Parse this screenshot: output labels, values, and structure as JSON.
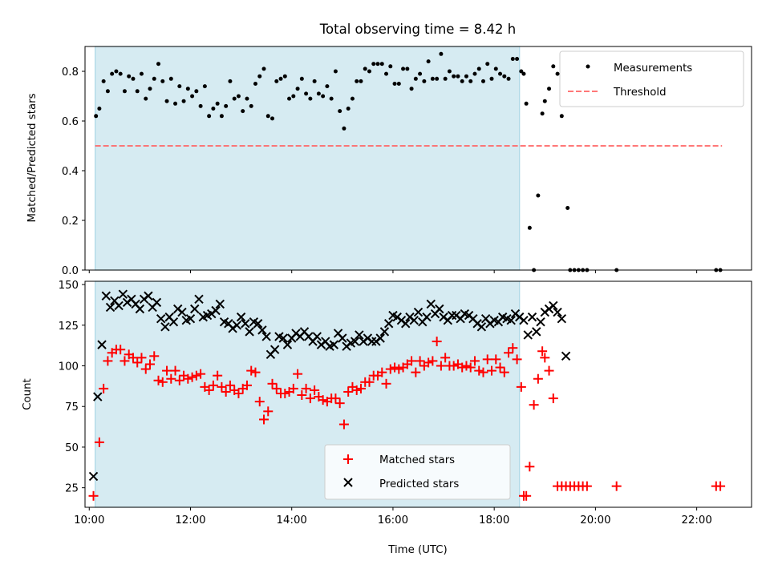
{
  "chart_data": [
    {
      "type": "scatter",
      "title": "Total observing time = 8.42 h",
      "xlabel": "",
      "ylabel": "Matched/Predicted stars",
      "xlim": [
        "09:55",
        "23:05"
      ],
      "ylim": [
        0,
        0.9
      ],
      "yticks": [
        "0.0",
        "0.2",
        "0.4",
        "0.6",
        "0.8"
      ],
      "grid": false,
      "legend_position": "top-right",
      "shaded_interval": [
        "10:07",
        "18:30"
      ],
      "colors": {
        "shade": "#add8e6",
        "measurements": "#000000",
        "threshold": "#ff6666"
      },
      "series": [
        {
          "name": "Measurements",
          "x": [
            "10:08",
            "10:12",
            "10:17",
            "10:22",
            "10:27",
            "10:32",
            "10:37",
            "10:42",
            "10:47",
            "10:52",
            "10:57",
            "11:02",
            "11:07",
            "11:12",
            "11:17",
            "11:22",
            "11:27",
            "11:32",
            "11:37",
            "11:42",
            "11:47",
            "11:52",
            "11:57",
            "12:02",
            "12:07",
            "12:12",
            "12:17",
            "12:22",
            "12:27",
            "12:32",
            "12:37",
            "12:42",
            "12:47",
            "12:52",
            "12:57",
            "13:02",
            "13:07",
            "13:12",
            "13:17",
            "13:22",
            "13:27",
            "13:32",
            "13:37",
            "13:42",
            "13:47",
            "13:52",
            "13:57",
            "14:02",
            "14:07",
            "14:12",
            "14:17",
            "14:22",
            "14:27",
            "14:32",
            "14:37",
            "14:42",
            "14:47",
            "14:52",
            "14:57",
            "15:02",
            "15:07",
            "15:12",
            "15:17",
            "15:22",
            "15:27",
            "15:32",
            "15:37",
            "15:42",
            "15:47",
            "15:52",
            "15:57",
            "16:02",
            "16:07",
            "16:12",
            "16:17",
            "16:22",
            "16:27",
            "16:32",
            "16:37",
            "16:42",
            "16:47",
            "16:52",
            "16:57",
            "17:02",
            "17:07",
            "17:12",
            "17:17",
            "17:22",
            "17:27",
            "17:32",
            "17:37",
            "17:42",
            "17:47",
            "17:52",
            "17:57",
            "18:02",
            "18:07",
            "18:12",
            "18:17",
            "18:22",
            "18:27",
            "18:32",
            "18:35",
            "18:38",
            "18:42",
            "18:47",
            "18:52",
            "18:57",
            "19:00",
            "19:05",
            "19:10",
            "19:15",
            "19:20",
            "19:27",
            "19:30",
            "19:35",
            "19:40",
            "19:45",
            "19:50",
            "20:25",
            "22:23",
            "22:28"
          ],
          "y": [
            0.62,
            0.65,
            0.76,
            0.72,
            0.79,
            0.8,
            0.79,
            0.72,
            0.78,
            0.77,
            0.72,
            0.79,
            0.69,
            0.73,
            0.77,
            0.83,
            0.76,
            0.68,
            0.77,
            0.67,
            0.74,
            0.68,
            0.73,
            0.7,
            0.72,
            0.66,
            0.74,
            0.62,
            0.65,
            0.67,
            0.62,
            0.66,
            0.76,
            0.69,
            0.7,
            0.64,
            0.69,
            0.66,
            0.75,
            0.78,
            0.81,
            0.62,
            0.61,
            0.76,
            0.77,
            0.78,
            0.69,
            0.7,
            0.73,
            0.77,
            0.71,
            0.69,
            0.76,
            0.71,
            0.7,
            0.74,
            0.69,
            0.8,
            0.64,
            0.57,
            0.65,
            0.69,
            0.76,
            0.76,
            0.81,
            0.8,
            0.83,
            0.83,
            0.83,
            0.79,
            0.82,
            0.75,
            0.75,
            0.81,
            0.81,
            0.73,
            0.77,
            0.79,
            0.76,
            0.84,
            0.77,
            0.77,
            0.87,
            0.77,
            0.8,
            0.78,
            0.78,
            0.76,
            0.78,
            0.76,
            0.79,
            0.81,
            0.76,
            0.83,
            0.77,
            0.81,
            0.79,
            0.78,
            0.77,
            0.85,
            0.85,
            0.8,
            0.79,
            0.67,
            0.17,
            0.0,
            0.3,
            0.63,
            0.68,
            0.73,
            0.82,
            0.79,
            0.62,
            0.25,
            0.0,
            0.0,
            0.0,
            0.0,
            0.0,
            0.0,
            0.0,
            0.0
          ]
        },
        {
          "name": "Threshold",
          "x": [
            "10:07",
            "22:30"
          ],
          "y": [
            0.5,
            0.5
          ]
        }
      ]
    },
    {
      "type": "scatter",
      "title": "",
      "xlabel": "Time (UTC)",
      "ylabel": "Count",
      "xlim": [
        "09:55",
        "23:05"
      ],
      "ylim": [
        13,
        152
      ],
      "xticks": [
        "10:00",
        "12:00",
        "14:00",
        "16:00",
        "18:00",
        "20:00",
        "22:00"
      ],
      "yticks": [
        "25",
        "50",
        "75",
        "100",
        "125",
        "150"
      ],
      "grid": false,
      "legend_position": "bottom-center",
      "shaded_interval": [
        "10:07",
        "18:30"
      ],
      "colors": {
        "shade": "#add8e6",
        "matched": "#ff0000",
        "predicted": "#000000"
      },
      "series": [
        {
          "name": "Matched stars",
          "x": [
            "10:05",
            "10:12",
            "10:17",
            "10:22",
            "10:27",
            "10:32",
            "10:37",
            "10:42",
            "10:47",
            "10:52",
            "10:57",
            "11:02",
            "11:07",
            "11:12",
            "11:17",
            "11:22",
            "11:27",
            "11:32",
            "11:37",
            "11:42",
            "11:47",
            "11:52",
            "11:57",
            "12:02",
            "12:07",
            "12:12",
            "12:17",
            "12:22",
            "12:27",
            "12:32",
            "12:37",
            "12:42",
            "12:47",
            "12:52",
            "12:57",
            "13:02",
            "13:07",
            "13:12",
            "13:17",
            "13:22",
            "13:27",
            "13:32",
            "13:37",
            "13:42",
            "13:47",
            "13:52",
            "13:57",
            "14:02",
            "14:07",
            "14:12",
            "14:17",
            "14:22",
            "14:27",
            "14:32",
            "14:37",
            "14:42",
            "14:47",
            "14:52",
            "14:57",
            "15:02",
            "15:07",
            "15:12",
            "15:17",
            "15:22",
            "15:27",
            "15:32",
            "15:37",
            "15:42",
            "15:47",
            "15:52",
            "15:57",
            "16:02",
            "16:07",
            "16:12",
            "16:17",
            "16:22",
            "16:27",
            "16:32",
            "16:37",
            "16:42",
            "16:47",
            "16:52",
            "16:57",
            "17:02",
            "17:07",
            "17:12",
            "17:17",
            "17:22",
            "17:27",
            "17:32",
            "17:37",
            "17:42",
            "17:47",
            "17:52",
            "17:57",
            "18:02",
            "18:07",
            "18:12",
            "18:17",
            "18:22",
            "18:27",
            "18:32",
            "18:35",
            "18:38",
            "18:42",
            "18:47",
            "18:52",
            "18:57",
            "19:00",
            "19:05",
            "19:10",
            "19:15",
            "19:20",
            "19:25",
            "19:30",
            "19:35",
            "19:40",
            "19:45",
            "19:50",
            "20:25",
            "22:23",
            "22:28"
          ],
          "y": [
            20,
            53,
            86,
            103,
            108,
            110,
            110,
            103,
            107,
            105,
            102,
            105,
            98,
            101,
            106,
            91,
            90,
            97,
            92,
            97,
            91,
            94,
            92,
            93,
            94,
            95,
            87,
            85,
            88,
            94,
            87,
            84,
            88,
            85,
            83,
            86,
            88,
            97,
            96,
            78,
            67,
            72,
            89,
            86,
            83,
            83,
            84,
            86,
            95,
            82,
            86,
            80,
            85,
            81,
            79,
            78,
            80,
            80,
            77,
            64,
            84,
            87,
            85,
            86,
            90,
            90,
            94,
            94,
            96,
            89,
            98,
            99,
            98,
            99,
            101,
            103,
            96,
            103,
            100,
            102,
            103,
            115,
            100,
            105,
            100,
            100,
            101,
            99,
            100,
            99,
            103,
            97,
            96,
            104,
            97,
            104,
            99,
            96,
            108,
            111,
            104,
            87,
            20,
            20,
            38,
            76,
            92,
            109,
            105,
            97,
            80,
            26,
            26,
            26,
            26,
            26,
            26,
            26,
            26,
            26,
            26,
            26
          ]
        },
        {
          "name": "Predicted stars",
          "x": [
            "10:05",
            "10:10",
            "10:15",
            "10:20",
            "10:25",
            "10:30",
            "10:35",
            "10:40",
            "10:45",
            "10:50",
            "10:55",
            "11:00",
            "11:05",
            "11:10",
            "11:15",
            "11:20",
            "11:25",
            "11:30",
            "11:35",
            "11:40",
            "11:45",
            "11:50",
            "11:55",
            "12:00",
            "12:05",
            "12:10",
            "12:15",
            "12:20",
            "12:25",
            "12:30",
            "12:35",
            "12:40",
            "12:45",
            "12:50",
            "12:55",
            "13:00",
            "13:05",
            "13:10",
            "13:15",
            "13:20",
            "13:25",
            "13:30",
            "13:35",
            "13:40",
            "13:45",
            "13:50",
            "13:55",
            "14:00",
            "14:05",
            "14:10",
            "14:15",
            "14:20",
            "14:25",
            "14:30",
            "14:35",
            "14:40",
            "14:45",
            "14:50",
            "14:55",
            "15:00",
            "15:05",
            "15:10",
            "15:15",
            "15:20",
            "15:25",
            "15:30",
            "15:35",
            "15:40",
            "15:45",
            "15:50",
            "15:55",
            "16:00",
            "16:05",
            "16:10",
            "16:15",
            "16:20",
            "16:25",
            "16:30",
            "16:35",
            "16:40",
            "16:45",
            "16:50",
            "16:55",
            "17:00",
            "17:05",
            "17:10",
            "17:15",
            "17:20",
            "17:25",
            "17:30",
            "17:35",
            "17:40",
            "17:45",
            "17:50",
            "17:55",
            "18:00",
            "18:05",
            "18:10",
            "18:15",
            "18:20",
            "18:25",
            "18:30",
            "18:35",
            "18:40",
            "18:45",
            "18:50",
            "18:55",
            "19:00",
            "19:05",
            "19:10",
            "19:15",
            "19:20",
            "19:25"
          ],
          "y": [
            32,
            81,
            113,
            143,
            136,
            140,
            137,
            144,
            139,
            141,
            138,
            135,
            141,
            143,
            136,
            139,
            129,
            124,
            130,
            127,
            135,
            133,
            128,
            129,
            135,
            141,
            130,
            131,
            132,
            134,
            138,
            127,
            126,
            123,
            125,
            130,
            126,
            121,
            127,
            126,
            122,
            118,
            107,
            110,
            118,
            117,
            113,
            117,
            120,
            118,
            121,
            118,
            115,
            118,
            113,
            115,
            112,
            113,
            120,
            117,
            112,
            114,
            115,
            119,
            115,
            117,
            115,
            115,
            117,
            121,
            126,
            131,
            130,
            128,
            126,
            130,
            128,
            133,
            127,
            130,
            138,
            132,
            135,
            130,
            128,
            131,
            131,
            129,
            132,
            131,
            129,
            126,
            124,
            129,
            126,
            128,
            127,
            130,
            129,
            128,
            132,
            130,
            128,
            119,
            130,
            121,
            127,
            133,
            135,
            137,
            133,
            129,
            106
          ]
        }
      ]
    }
  ]
}
